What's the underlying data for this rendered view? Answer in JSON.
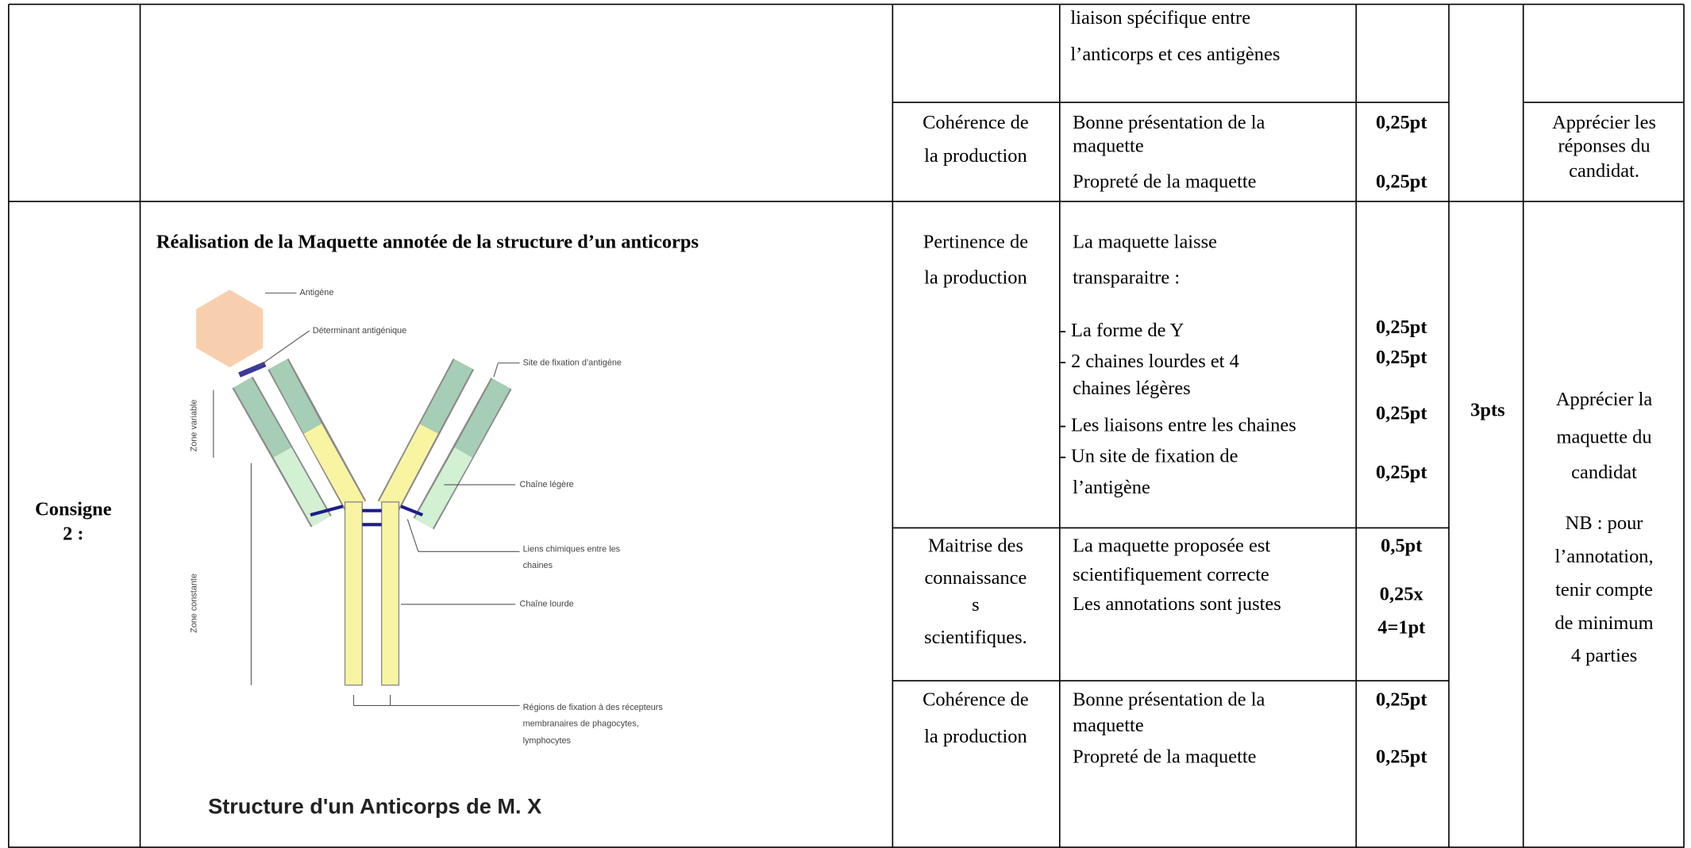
{
  "table": {
    "row_1": {
      "previous_indicator": [
        "liaison spécifique entre",
        "l’anticorps et ces antigènes"
      ],
      "criterion": [
        "Cohérence de",
        "la production"
      ],
      "indicators": [
        "Bonne présentation de la",
        "maquette",
        "Propreté de la maquette"
      ],
      "points": [
        "0,25pt",
        "0,25pt"
      ],
      "remark": [
        "Apprécier les",
        "réponses du",
        "candidat."
      ]
    },
    "row_2": {
      "instruction": [
        "Consigne",
        "2 :"
      ],
      "task": "Réalisation de la Maquette annotée de la structure d’un anticorps",
      "figure": {
        "antigen": "Antigène",
        "determinant": "Déterminant antigénique",
        "binding_site": "Site de fixation d’antigène",
        "light_chain": "Chaîne légère",
        "bonds": [
          "Liens chimiques entre les",
          "chaines"
        ],
        "heavy_chain": "Chaîne lourde",
        "receptor_regions": [
          "Régions de fixation à des récepteurs",
          "membranaires de phagocytes,",
          "lymphocytes"
        ],
        "variable_zone": "Zone variable",
        "constant_zone": "Zone constante",
        "caption": "Structure d'un Anticorps de M. X"
      },
      "total": "3pts",
      "remark": [
        "Apprécier la",
        "maquette du",
        "candidat"
      ],
      "note": [
        "NB : pour",
        "l’annotation,",
        "tenir compte",
        "de minimum",
        "4 parties"
      ],
      "criteria": [
        {
          "criterion": [
            "Pertinence de",
            "la production"
          ],
          "indicators": [
            "La maquette laisse",
            "transparaitre :",
            "- La forme de Y",
            "- 2 chaines lourdes et 4",
            "chaines légères",
            "- Les liaisons entre les chaines",
            "- Un site de fixation de",
            "l’antigène"
          ],
          "points": [
            "0,25pt",
            "0,25pt",
            "0,25pt",
            "0,25pt"
          ]
        },
        {
          "criterion": [
            "Maitrise des",
            "connaissance",
            "s",
            "scientifiques."
          ],
          "indicators": [
            "La maquette proposée est",
            "scientifiquement correcte",
            "Les annotations sont justes"
          ],
          "points": [
            "0,5pt",
            "0,25x",
            "4=1pt"
          ]
        },
        {
          "criterion": [
            "Cohérence de",
            "la production"
          ],
          "indicators": [
            "Bonne présentation de la",
            "maquette",
            "Propreté de la maquette"
          ],
          "points": [
            "0,25pt",
            "0,25pt"
          ]
        }
      ]
    }
  }
}
